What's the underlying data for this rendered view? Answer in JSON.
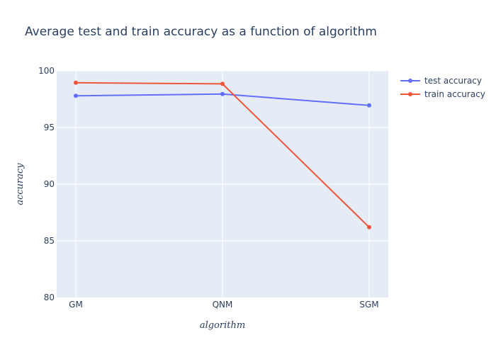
{
  "chart_data": {
    "type": "line",
    "title": "Average test and train accuracy as a function of algorithm",
    "xlabel": "algorithm",
    "ylabel": "accuracy",
    "categories": [
      "GM",
      "QNM",
      "SGM"
    ],
    "ylim": [
      80,
      100
    ],
    "yticks": [
      80,
      85,
      90,
      95,
      100
    ],
    "grid": true,
    "legend_position": "top-right",
    "plot_bgcolor": "#e5ecf6",
    "series": [
      {
        "name": "test accuracy",
        "color": "#636efa",
        "values": [
          97.8,
          97.95,
          96.95
        ]
      },
      {
        "name": "train accuracy",
        "color": "#ef553b",
        "values": [
          98.95,
          98.85,
          86.2
        ]
      }
    ]
  }
}
